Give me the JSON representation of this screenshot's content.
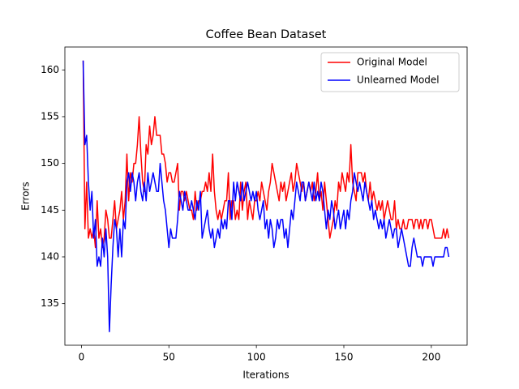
{
  "chart_data": {
    "type": "line",
    "title": "Coffee Bean Dataset",
    "x_label": "Iterations",
    "y_label": "Errors",
    "x": [
      1,
      2,
      3,
      4,
      5,
      6,
      7,
      8,
      9,
      10,
      11,
      12,
      13,
      14,
      15,
      16,
      17,
      18,
      19,
      20,
      21,
      22,
      23,
      24,
      25,
      26,
      27,
      28,
      29,
      30,
      31,
      32,
      33,
      34,
      35,
      36,
      37,
      38,
      39,
      40,
      41,
      42,
      43,
      44,
      45,
      46,
      47,
      48,
      49,
      50,
      51,
      52,
      53,
      54,
      55,
      56,
      57,
      58,
      59,
      60,
      61,
      62,
      63,
      64,
      65,
      66,
      67,
      68,
      69,
      70,
      71,
      72,
      73,
      74,
      75,
      76,
      77,
      78,
      79,
      80,
      81,
      82,
      83,
      84,
      85,
      86,
      87,
      88,
      89,
      90,
      91,
      92,
      93,
      94,
      95,
      96,
      97,
      98,
      99,
      100,
      101,
      102,
      103,
      104,
      105,
      106,
      107,
      108,
      109,
      110,
      111,
      112,
      113,
      114,
      115,
      116,
      117,
      118,
      119,
      120,
      121,
      122,
      123,
      124,
      125,
      126,
      127,
      128,
      129,
      130,
      131,
      132,
      133,
      134,
      135,
      136,
      137,
      138,
      139,
      140,
      141,
      142,
      143,
      144,
      145,
      146,
      147,
      148,
      149,
      150,
      151,
      152,
      153,
      154,
      155,
      156,
      157,
      158,
      159,
      160,
      161,
      162,
      163,
      164,
      165,
      166,
      167,
      168,
      169,
      170,
      171,
      172,
      173,
      174,
      175,
      176,
      177,
      178,
      179,
      180,
      181,
      182,
      183,
      184,
      185,
      186,
      187,
      188,
      189,
      190,
      191,
      192,
      193,
      194,
      195,
      196,
      197,
      198,
      199,
      200,
      201,
      202,
      203,
      204,
      205,
      206,
      207,
      208,
      209,
      210
    ],
    "series": [
      {
        "name": "Original Model",
        "color": "#ff0000",
        "values": [
          161,
          143,
          148,
          142,
          143,
          142,
          143,
          141,
          146,
          142,
          143,
          141,
          142,
          145,
          144,
          142,
          142,
          144,
          146,
          143,
          144,
          145,
          147,
          144,
          146,
          151,
          146,
          149,
          148,
          150,
          150,
          152,
          155,
          151,
          148,
          147,
          152,
          151,
          154,
          152,
          153,
          155,
          153,
          153,
          153,
          151,
          151,
          150,
          148,
          149,
          149,
          148,
          148,
          149,
          150,
          145,
          147,
          147,
          146,
          147,
          146,
          145,
          145,
          144,
          147,
          145,
          146,
          146,
          147,
          147,
          148,
          147,
          149,
          147,
          151,
          147,
          145,
          144,
          145,
          144,
          145,
          146,
          146,
          149,
          144,
          146,
          146,
          144,
          145,
          144,
          148,
          145,
          147,
          148,
          144,
          146,
          145,
          144,
          146,
          146,
          147,
          146,
          148,
          147,
          146,
          145,
          147,
          148,
          150,
          149,
          148,
          147,
          146,
          148,
          147,
          148,
          146,
          147,
          148,
          149,
          147,
          148,
          150,
          149,
          148,
          147,
          148,
          146,
          147,
          148,
          147,
          148,
          146,
          147,
          149,
          146,
          147,
          145,
          148,
          146,
          144,
          142,
          143,
          144,
          146,
          145,
          148,
          147,
          149,
          148,
          147,
          149,
          148,
          152,
          148,
          147,
          146,
          149,
          149,
          149,
          148,
          149,
          147,
          146,
          148,
          146,
          147,
          146,
          145,
          146,
          145,
          146,
          144,
          145,
          146,
          145,
          144,
          144,
          146,
          143,
          144,
          143,
          143,
          144,
          143,
          143,
          144,
          144,
          144,
          143,
          144,
          144,
          143,
          144,
          143,
          144,
          144,
          143,
          144,
          144,
          143,
          142,
          142,
          142,
          142,
          142,
          143,
          142,
          143,
          142
        ]
      },
      {
        "name": "Unlearned Model",
        "color": "#0000ff",
        "values": [
          161,
          152,
          153,
          148,
          145,
          147,
          142,
          144,
          139,
          140,
          139,
          142,
          140,
          143,
          140,
          132,
          137,
          141,
          144,
          143,
          140,
          143,
          140,
          144,
          143,
          148,
          149,
          147,
          149,
          148,
          146,
          148,
          149,
          147,
          146,
          148,
          146,
          149,
          147,
          148,
          149,
          148,
          147,
          147,
          150,
          148,
          146,
          145,
          143,
          141,
          143,
          142,
          142,
          142,
          144,
          147,
          146,
          145,
          147,
          146,
          145,
          145,
          146,
          145,
          144,
          146,
          145,
          147,
          142,
          143,
          144,
          145,
          143,
          142,
          143,
          141,
          142,
          143,
          142,
          144,
          143,
          144,
          143,
          146,
          146,
          144,
          148,
          146,
          148,
          147,
          146,
          148,
          146,
          147,
          148,
          147,
          146,
          147,
          146,
          147,
          145,
          144,
          145,
          146,
          143,
          144,
          142,
          144,
          143,
          141,
          142,
          144,
          143,
          144,
          144,
          142,
          143,
          141,
          143,
          145,
          144,
          146,
          148,
          147,
          146,
          148,
          148,
          146,
          147,
          148,
          147,
          146,
          148,
          146,
          147,
          146,
          148,
          147,
          145,
          143,
          145,
          144,
          146,
          145,
          143,
          144,
          145,
          143,
          144,
          145,
          143,
          145,
          144,
          146,
          147,
          149,
          148,
          147,
          148,
          147,
          146,
          148,
          147,
          146,
          145,
          146,
          144,
          145,
          144,
          143,
          144,
          143,
          144,
          142,
          143,
          144,
          143,
          142,
          143,
          143,
          141,
          142,
          143,
          142,
          141,
          140,
          139,
          139,
          141,
          142,
          141,
          140,
          140,
          140,
          139,
          140,
          140,
          140,
          140,
          140,
          139,
          140,
          140,
          140,
          140,
          140,
          140,
          141,
          141,
          140
        ]
      }
    ],
    "xlim": [
      -9.45,
      220.45
    ],
    "xticks": [
      0,
      50,
      100,
      150,
      200
    ],
    "ylim": [
      130.55,
      162.45
    ],
    "yticks": [
      135,
      140,
      145,
      150,
      155,
      160
    ],
    "grid": false,
    "legend": "upper right"
  }
}
